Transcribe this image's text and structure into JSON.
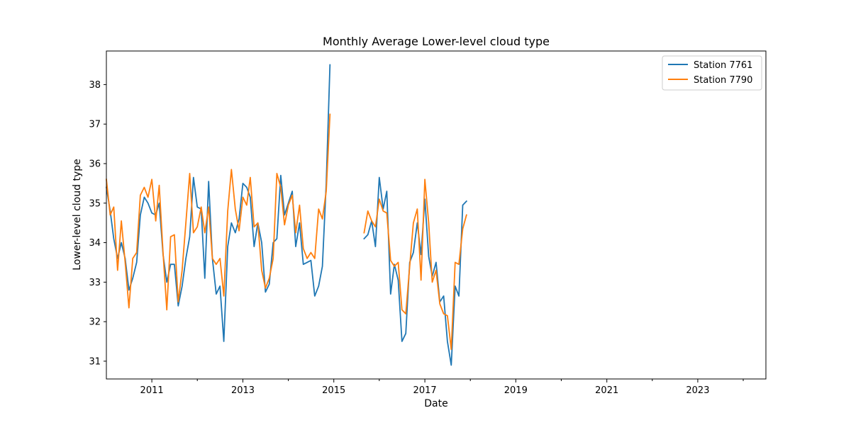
{
  "chart_data": {
    "type": "line",
    "title": "Monthly Average Lower-level cloud type",
    "xlabel": "Date",
    "ylabel": "Lower-level cloud type",
    "xlim": [
      "2010-01-01",
      "2024-07-01"
    ],
    "ylim": [
      30.55,
      38.85
    ],
    "x_ticks": [
      "2011",
      "2013",
      "2015",
      "2017",
      "2019",
      "2021",
      "2023"
    ],
    "y_ticks": [
      "31",
      "32",
      "33",
      "34",
      "35",
      "36",
      "37",
      "38"
    ],
    "grid": false,
    "legend_position": "top-right",
    "series": [
      {
        "name": "Station 7761",
        "color": "#1f77b4",
        "segments": [
          {
            "start": "2010-01",
            "values": [
              35.4,
              34.8,
              34.1,
              33.6,
              34.0,
              33.6,
              32.8,
              33.1,
              33.5,
              34.7,
              35.15,
              35.0,
              34.75,
              34.7,
              35.0,
              33.7,
              33.0,
              33.45,
              33.45,
              32.4,
              32.9,
              33.6,
              34.15,
              35.65,
              34.9,
              34.85,
              33.1,
              35.55,
              33.6,
              32.7,
              32.9,
              31.5,
              33.9,
              34.5,
              34.25,
              34.6,
              35.5,
              35.4,
              35.15,
              33.9,
              34.5,
              34.0,
              32.75,
              32.95,
              34.0,
              34.1,
              35.7,
              34.7,
              35.0,
              35.3,
              33.9,
              34.5,
              33.45,
              33.5,
              33.55,
              32.65,
              32.9,
              33.4,
              35.5,
              38.5
            ]
          },
          {
            "start": "2015-09",
            "values": [
              34.1,
              34.2,
              34.55,
              33.9,
              35.65,
              34.85,
              35.3,
              32.7,
              33.45,
              33.05,
              31.5,
              31.7,
              33.5,
              33.75,
              34.5,
              33.7,
              35.1,
              33.65,
              33.15,
              33.5,
              32.5,
              32.65,
              31.5,
              30.9,
              32.9,
              32.65,
              34.95,
              35.05
            ]
          }
        ]
      },
      {
        "name": "Station 7790",
        "color": "#ff7f0e",
        "segments": [
          {
            "start": "2010-01",
            "values": [
              35.6,
              34.7,
              34.9,
              33.3,
              34.55,
              33.5,
              32.35,
              33.6,
              33.75,
              35.2,
              35.4,
              35.15,
              35.6,
              34.55,
              35.45,
              33.75,
              32.3,
              34.15,
              34.2,
              32.5,
              33.3,
              34.5,
              35.75,
              34.25,
              34.4,
              34.9,
              34.25,
              34.9,
              33.6,
              33.45,
              33.6,
              32.65,
              34.8,
              35.85,
              34.85,
              34.3,
              35.15,
              34.95,
              35.65,
              34.4,
              34.5,
              33.3,
              32.85,
              33.1,
              33.6,
              35.75,
              35.4,
              34.45,
              34.95,
              35.2,
              34.25,
              34.95,
              33.85,
              33.6,
              33.75,
              33.6,
              34.85,
              34.6,
              35.3,
              37.25
            ]
          },
          {
            "start": "2015-09",
            "values": [
              34.25,
              34.8,
              34.55,
              34.4,
              35.1,
              34.8,
              34.75,
              33.55,
              33.4,
              33.5,
              32.3,
              32.2,
              33.4,
              34.5,
              34.85,
              33.05,
              35.6,
              34.5,
              33.0,
              33.3,
              32.45,
              32.2,
              32.15,
              31.3,
              33.5,
              33.45,
              34.35,
              34.7
            ]
          }
        ]
      }
    ]
  }
}
